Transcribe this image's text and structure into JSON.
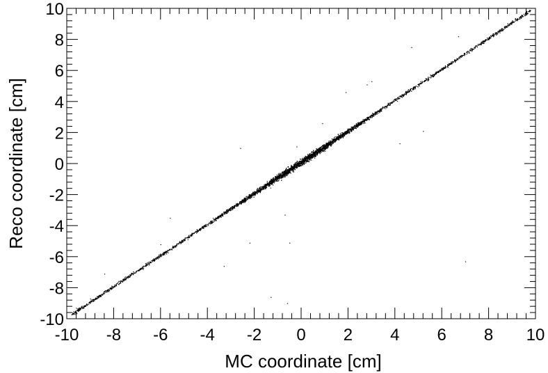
{
  "chart_data": {
    "type": "scatter",
    "title": "",
    "xlabel": "MC coordinate [cm]",
    "ylabel": "Reco coordinate [cm]",
    "xlim": [
      -10,
      10
    ],
    "ylim": [
      -10,
      10
    ],
    "x_ticks": [
      "-10",
      "-8",
      "-6",
      "-4",
      "-2",
      "0",
      "2",
      "4",
      "6",
      "8",
      "10"
    ],
    "y_ticks": [
      "-10",
      "-8",
      "-6",
      "-4",
      "-2",
      "0",
      "2",
      "4",
      "6",
      "8",
      "10"
    ],
    "grid": false,
    "legend": "none",
    "marker_color": "#000000",
    "relation": "reco ≈ mc, tight diagonal band densest near 0",
    "series": [
      {
        "points": [
          [
            -9.6,
            -9.3
          ],
          [
            -9.0,
            -8.7
          ],
          [
            -8.4,
            -8.2
          ],
          [
            -7.8,
            -7.6
          ],
          [
            -7.2,
            -7.1
          ],
          [
            -6.6,
            -6.4
          ],
          [
            -6.0,
            -5.9
          ],
          [
            -5.6,
            -5.5
          ],
          [
            -5.2,
            -5.0
          ],
          [
            -4.8,
            -4.6
          ],
          [
            -4.4,
            -4.3
          ],
          [
            -4.0,
            -3.9
          ],
          [
            -3.6,
            -3.5
          ],
          [
            -3.2,
            -3.0
          ],
          [
            -2.8,
            -2.7
          ],
          [
            -2.4,
            -2.3
          ],
          [
            -2.0,
            -1.9
          ],
          [
            -1.6,
            -1.5
          ],
          [
            -1.2,
            -1.1
          ],
          [
            -0.8,
            -0.7
          ],
          [
            -0.4,
            -0.3
          ],
          [
            0.0,
            0.1
          ],
          [
            0.4,
            0.5
          ],
          [
            0.8,
            0.9
          ],
          [
            1.2,
            1.3
          ],
          [
            1.6,
            1.7
          ],
          [
            2.0,
            2.1
          ],
          [
            2.4,
            2.5
          ],
          [
            2.8,
            2.9
          ],
          [
            3.2,
            3.3
          ],
          [
            3.6,
            3.7
          ],
          [
            4.0,
            4.1
          ],
          [
            4.4,
            4.5
          ],
          [
            4.8,
            4.9
          ],
          [
            5.4,
            5.5
          ],
          [
            6.0,
            6.1
          ],
          [
            6.6,
            6.7
          ],
          [
            7.2,
            7.3
          ],
          [
            7.8,
            7.9
          ],
          [
            8.4,
            8.5
          ],
          [
            9.0,
            9.1
          ],
          [
            9.6,
            9.7
          ],
          [
            4.7,
            7.5
          ],
          [
            6.7,
            8.2
          ],
          [
            7.0,
            -6.3
          ],
          [
            -0.5,
            -5.1
          ],
          [
            -0.7,
            -3.3
          ],
          [
            -2.2,
            -5.1
          ],
          [
            -3.3,
            -6.6
          ],
          [
            -1.3,
            -8.6
          ],
          [
            -0.6,
            -9.0
          ],
          [
            2.8,
            5.1
          ],
          [
            1.9,
            4.6
          ],
          [
            -0.2,
            1.1
          ],
          [
            0.9,
            2.6
          ],
          [
            4.2,
            1.3
          ],
          [
            -5.6,
            -3.5
          ],
          [
            -6.0,
            -5.2
          ],
          [
            5.2,
            2.1
          ],
          [
            -2.6,
            1.0
          ],
          [
            3.0,
            5.3
          ],
          [
            -8.4,
            -7.1
          ]
        ]
      }
    ]
  }
}
